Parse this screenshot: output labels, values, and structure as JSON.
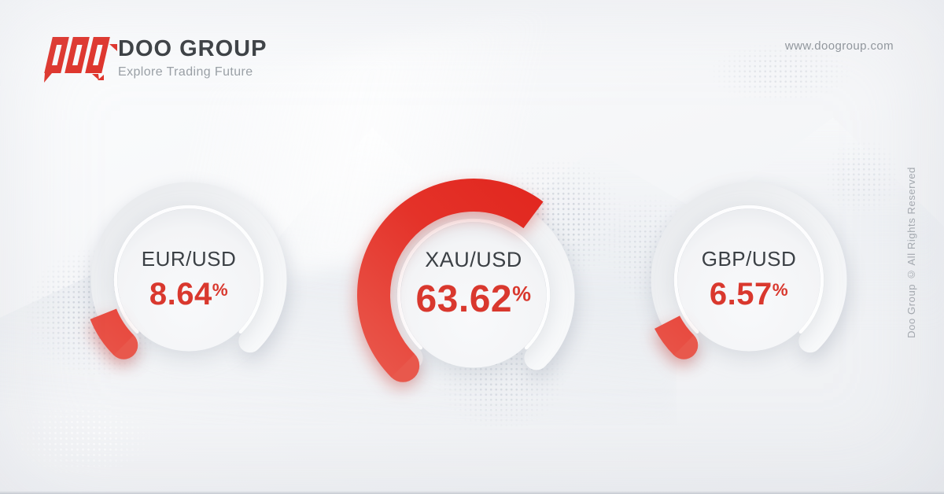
{
  "brand": {
    "name": "DOO GROUP",
    "tagline": "Explore Trading Future"
  },
  "header": {
    "website": "www.doogroup.com"
  },
  "footer": {
    "watermark": "Doo Group © All Rights Reserved"
  },
  "colors": {
    "accent_red": "#e0332a",
    "arc_red_bright": "#e1241c",
    "arc_red_soft": "#ec6357",
    "value_red": "#d9382e",
    "label_dark": "#3b4045",
    "muted_gray": "#9aa0a6",
    "track_gray": "#e9ebee"
  },
  "chart_data": {
    "type": "gauge",
    "title": "",
    "max": 100,
    "arc_span_degrees": 270,
    "start_angle_compass": 225,
    "legend_position": "none",
    "gauges": [
      {
        "label": "EUR/USD",
        "value": 8.64,
        "display": "8.64",
        "unit": "%"
      },
      {
        "label": "XAU/USD",
        "value": 63.62,
        "display": "63.62",
        "unit": "%"
      },
      {
        "label": "GBP/USD",
        "value": 6.57,
        "display": "6.57",
        "unit": "%"
      }
    ]
  }
}
